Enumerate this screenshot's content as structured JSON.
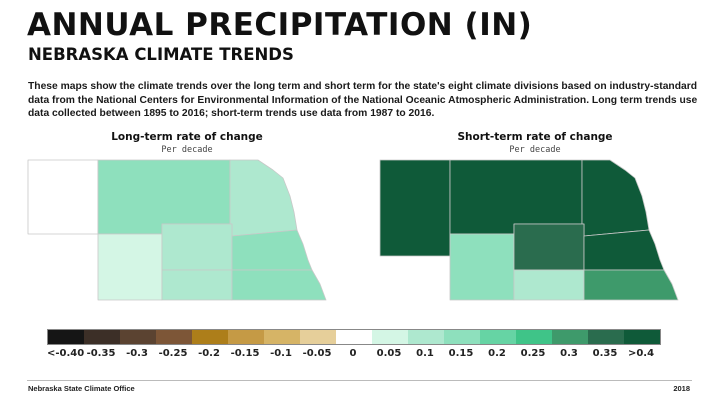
{
  "header": {
    "title": "ANNUAL PRECIPITATION (IN)",
    "subtitle": "NEBRASKA CLIMATE TRENDS"
  },
  "description": "These maps show the climate trends over the long term and short term for the state's eight climate divisions based on industry-standard data from the National Centers for Environmental Information of the National Oceanic Atmospheric Administration. Long term trends use data collected between 1895 to 2016; short-term trends use data from 1987 to 2016.",
  "maps": {
    "long_term": {
      "title": "Long-term rate of change",
      "subtitle": "Per decade",
      "divisions": {
        "northwest": {
          "value": 0,
          "color": "#ffffff"
        },
        "north_central": {
          "value": 0.15,
          "color": "#8ee0bd"
        },
        "northeast": {
          "value": 0.1,
          "color": "#aee8cf"
        },
        "central": {
          "value": 0.1,
          "color": "#aee8cf"
        },
        "east_central": {
          "value": 0.15,
          "color": "#8ee0bd"
        },
        "southwest": {
          "value": 0.05,
          "color": "#d4f6e5"
        },
        "south_central": {
          "value": 0.1,
          "color": "#aee8cf"
        },
        "southeast": {
          "value": 0.15,
          "color": "#8ee0bd"
        }
      }
    },
    "short_term": {
      "title": "Short-term rate of change",
      "subtitle": "Per decade",
      "divisions": {
        "northwest": {
          "value": 0.4,
          "color": "#0f5a39"
        },
        "north_central": {
          "value": 0.4,
          "color": "#0f5a39"
        },
        "northeast": {
          "value": 0.4,
          "color": "#0f5a39"
        },
        "central": {
          "value": 0.35,
          "color": "#2a6c4e"
        },
        "east_central": {
          "value": 0.4,
          "color": "#0f5a39"
        },
        "southwest": {
          "value": 0.15,
          "color": "#8ee0bd"
        },
        "south_central": {
          "value": 0.1,
          "color": "#aee8cf"
        },
        "southeast": {
          "value": 0.3,
          "color": "#3e9a6b"
        }
      }
    }
  },
  "legend": {
    "items": [
      {
        "label": "<-0.40",
        "color": "#151515"
      },
      {
        "label": "-0.35",
        "color": "#3c2f27"
      },
      {
        "label": "-0.3",
        "color": "#5b4331"
      },
      {
        "label": "-0.25",
        "color": "#7d5637"
      },
      {
        "label": "-0.2",
        "color": "#ad7e1a"
      },
      {
        "label": "-0.15",
        "color": "#c59a45"
      },
      {
        "label": "-0.1",
        "color": "#d6b466"
      },
      {
        "label": "-0.05",
        "color": "#e6cf9a"
      },
      {
        "label": "0",
        "color": "#ffffff"
      },
      {
        "label": "0.05",
        "color": "#d4f6e5"
      },
      {
        "label": "0.1",
        "color": "#aee8cf"
      },
      {
        "label": "0.15",
        "color": "#8ee0bd"
      },
      {
        "label": "0.2",
        "color": "#66d4a4"
      },
      {
        "label": "0.25",
        "color": "#3fc488"
      },
      {
        "label": "0.3",
        "color": "#3e9a6b"
      },
      {
        "label": "0.35",
        "color": "#2a6c4e"
      },
      {
        "label": ">0.4",
        "color": "#0f5a39"
      }
    ]
  },
  "footer": {
    "org": "Nebraska State Climate Office",
    "year": "2018"
  }
}
